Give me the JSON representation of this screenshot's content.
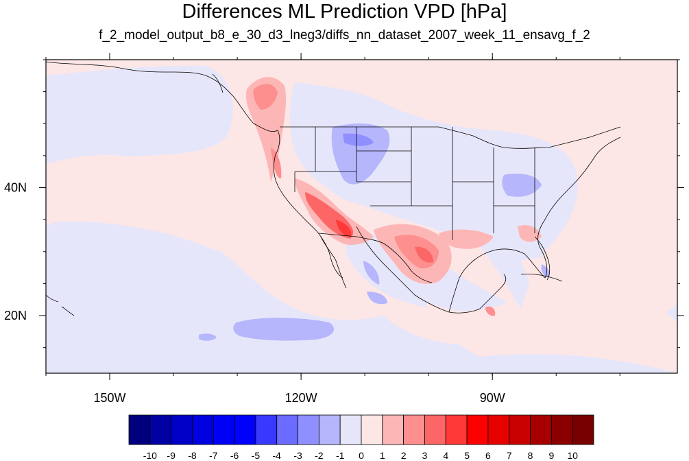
{
  "title": "Differences ML Prediction VPD [hPa]",
  "subtitle": "f_2_model_output_b8_e_30_d3_lneg3/diffs_nn_dataset_2007_week_11_ensavg_f_2",
  "map": {
    "lon_range": [
      -160,
      -61
    ],
    "lat_range": [
      11,
      60
    ],
    "lon_ticks": [
      {
        "value": -150,
        "label": "150W"
      },
      {
        "value": -120,
        "label": "120W"
      },
      {
        "value": -90,
        "label": "90W"
      }
    ],
    "lat_ticks": [
      {
        "value": 40,
        "label": "40N"
      },
      {
        "value": 20,
        "label": "20N"
      }
    ],
    "background_fill": "#fde6e6",
    "negative_light_fill": "#e6e6fb"
  },
  "colorbar": {
    "labels": [
      "-10",
      "-9",
      "-8",
      "-7",
      "-6",
      "-5",
      "-4",
      "-3",
      "-2",
      "-1",
      "0",
      "1",
      "2",
      "3",
      "4",
      "5",
      "6",
      "7",
      "8",
      "9",
      "10"
    ],
    "colors": [
      "#00007f",
      "#0000a3",
      "#0000c6",
      "#0000e0",
      "#0000f5",
      "#0000ff",
      "#3838ff",
      "#6b6bff",
      "#8f8fff",
      "#b6b6fd",
      "#e6e6fb",
      "#fde6e6",
      "#fdb6b6",
      "#fd8f8f",
      "#fd6666",
      "#ff3838",
      "#ff0000",
      "#e60000",
      "#c80000",
      "#a80000",
      "#8a0000",
      "#780000"
    ]
  }
}
